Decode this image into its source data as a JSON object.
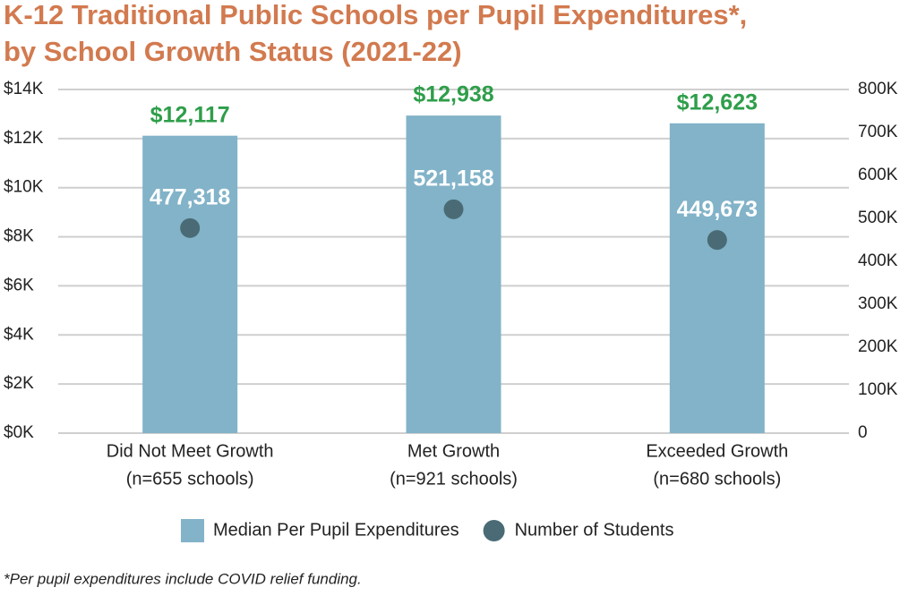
{
  "chart_data": {
    "type": "bar",
    "title": [
      "K-12 Traditional Public Schools per Pupil Expenditures*,",
      "by School Growth Status (2021-22)"
    ],
    "categories": [
      "Did Not Meet Growth",
      "Met Growth",
      "Exceeded Growth"
    ],
    "category_notes": [
      "(n=655 schools)",
      "(n=921 schools)",
      "(n=680 schools)"
    ],
    "series": [
      {
        "name": "Median Per Pupil Expenditures",
        "type": "bar",
        "color": "#82b3c8",
        "values": [
          12117,
          12938,
          12623
        ],
        "value_labels": [
          "$12,117",
          "$12,938",
          "$12,623"
        ],
        "label_color": "#2e9e4a"
      },
      {
        "name": "Number of Students",
        "type": "scatter",
        "axis": "y2",
        "color": "#4a6b75",
        "values": [
          477318,
          521158,
          449673
        ],
        "value_labels": [
          "477,318",
          "521,158",
          "449,673"
        ],
        "label_color": "#ffffff"
      }
    ],
    "ylim": [
      0,
      14000
    ],
    "yticks": [
      {
        "value": 0,
        "label": "$0K"
      },
      {
        "value": 2000,
        "label": "$2K"
      },
      {
        "value": 4000,
        "label": "$4K"
      },
      {
        "value": 6000,
        "label": "$6K"
      },
      {
        "value": 8000,
        "label": "$8K"
      },
      {
        "value": 10000,
        "label": "$10K"
      },
      {
        "value": 12000,
        "label": "$12K"
      },
      {
        "value": 14000,
        "label": "$14K"
      }
    ],
    "y2lim": [
      0,
      800000
    ],
    "y2ticks": [
      0,
      {
        "value": 100000,
        "label": "100K"
      },
      {
        "value": 200000,
        "label": "200K"
      },
      {
        "value": 300000,
        "label": "300K"
      },
      {
        "value": 400000,
        "label": "400K"
      },
      {
        "value": 500000,
        "label": "500K"
      },
      {
        "value": 600000,
        "label": "600K"
      },
      {
        "value": 700000,
        "label": "700K"
      },
      {
        "value": 800000,
        "label": "800K"
      }
    ],
    "grid": true,
    "legend": "bottom",
    "footnote": "*Per pupil expenditures include COVID relief funding."
  }
}
